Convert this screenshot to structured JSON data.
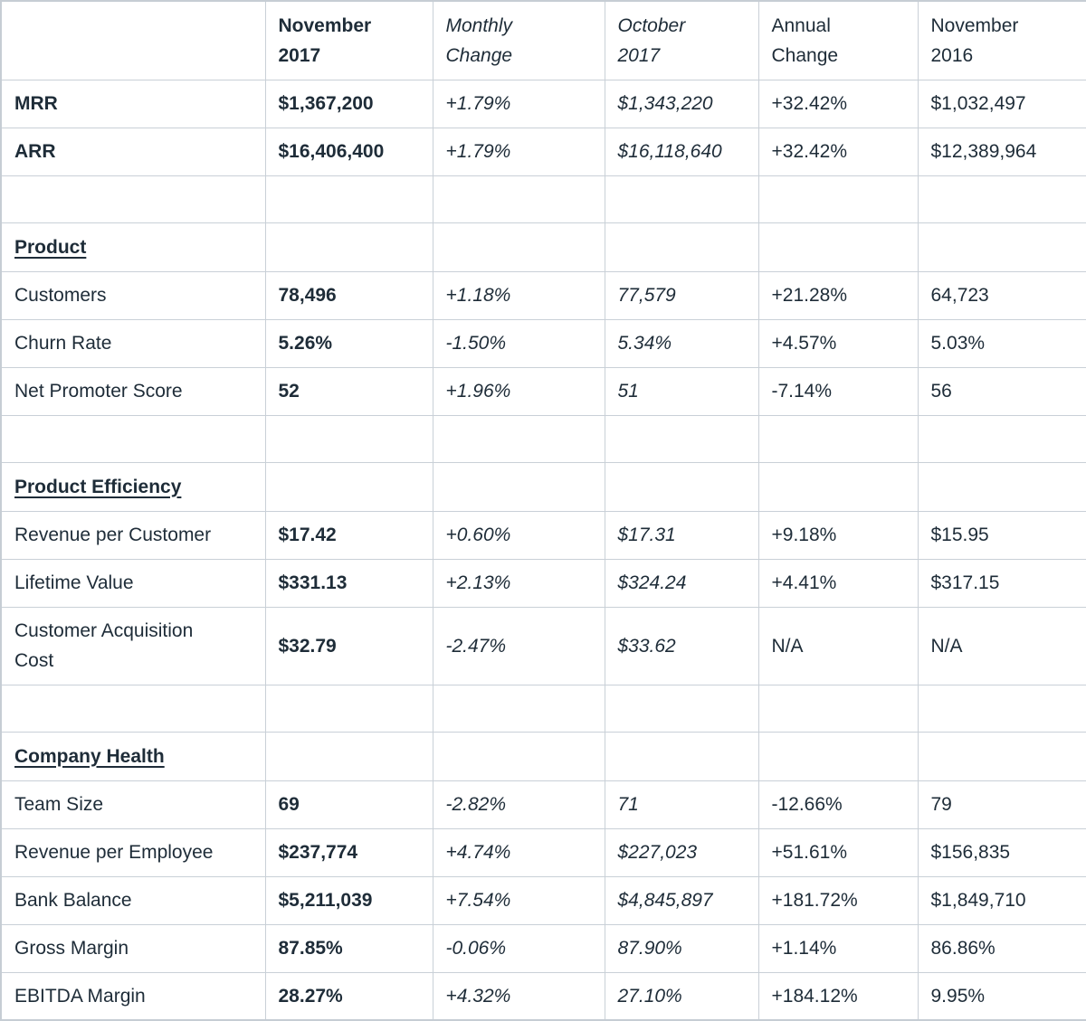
{
  "table": {
    "columns": [
      {
        "lines": [
          ""
        ],
        "style": "label"
      },
      {
        "lines": [
          "November",
          "2017"
        ],
        "style": "bold"
      },
      {
        "lines": [
          "Monthly",
          "Change"
        ],
        "style": "italic"
      },
      {
        "lines": [
          "October",
          "2017"
        ],
        "style": "italic"
      },
      {
        "lines": [
          "Annual",
          "Change"
        ],
        "style": "regular"
      },
      {
        "lines": [
          "November",
          "2016"
        ],
        "style": "regular"
      }
    ],
    "rows": [
      {
        "type": "data",
        "label": "MRR",
        "label_bold": true,
        "values": [
          "$1,367,200",
          "+1.79%",
          "$1,343,220",
          "+32.42%",
          "$1,032,497"
        ]
      },
      {
        "type": "data",
        "label": "ARR",
        "label_bold": true,
        "values": [
          "$16,406,400",
          "+1.79%",
          "$16,118,640",
          "+32.42%",
          "$12,389,964"
        ]
      },
      {
        "type": "spacer"
      },
      {
        "type": "section",
        "label": "Product"
      },
      {
        "type": "data",
        "label": "Customers",
        "values": [
          "78,496",
          "+1.18%",
          "77,579",
          "+21.28%",
          "64,723"
        ]
      },
      {
        "type": "data",
        "label": "Churn Rate",
        "values": [
          "5.26%",
          "-1.50%",
          "5.34%",
          "+4.57%",
          "5.03%"
        ]
      },
      {
        "type": "data",
        "label": "Net Promoter Score",
        "values": [
          "52",
          "+1.96%",
          "51",
          "-7.14%",
          "56"
        ]
      },
      {
        "type": "spacer"
      },
      {
        "type": "section",
        "label": "Product Efficiency"
      },
      {
        "type": "data",
        "label": "Revenue per Customer",
        "values": [
          "$17.42",
          "+0.60%",
          "$17.31",
          "+9.18%",
          "$15.95"
        ]
      },
      {
        "type": "data",
        "label": "Lifetime Value",
        "values": [
          "$331.13",
          "+2.13%",
          "$324.24",
          "+4.41%",
          "$317.15"
        ]
      },
      {
        "type": "data",
        "label": "Customer Acquisition Cost",
        "tall": true,
        "label_lines": [
          "Customer Acquisition",
          "Cost"
        ],
        "values": [
          "$32.79",
          "-2.47%",
          "$33.62",
          "N/A",
          "N/A"
        ]
      },
      {
        "type": "spacer"
      },
      {
        "type": "section",
        "label": "Company Health"
      },
      {
        "type": "data",
        "label": "Team Size",
        "values": [
          "69",
          "-2.82%",
          "71",
          "-12.66%",
          "79"
        ]
      },
      {
        "type": "data",
        "label": "Revenue per Employee",
        "values": [
          "$237,774",
          "+4.74%",
          "$227,023",
          "+51.61%",
          "$156,835"
        ]
      },
      {
        "type": "data",
        "label": "Bank Balance",
        "values": [
          "$5,211,039",
          "+7.54%",
          "$4,845,897",
          "+181.72%",
          "$1,849,710"
        ]
      },
      {
        "type": "data",
        "label": "Gross Margin",
        "values": [
          "87.85%",
          "-0.06%",
          "87.90%",
          "+1.14%",
          "86.86%"
        ]
      },
      {
        "type": "data",
        "label": "EBITDA Margin",
        "values": [
          "28.27%",
          "+4.32%",
          "27.10%",
          "+184.12%",
          "9.95%"
        ]
      }
    ]
  },
  "colors": {
    "text": "#1e2c38",
    "border": "#c9d0d7",
    "background": "#ffffff"
  }
}
